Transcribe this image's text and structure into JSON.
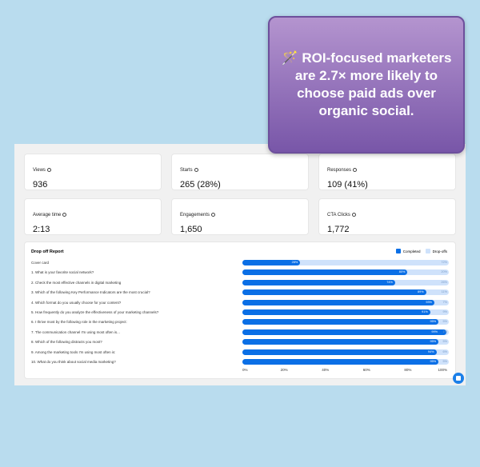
{
  "stats": [
    {
      "label": "Views",
      "value": "936"
    },
    {
      "label": "Starts",
      "value": "265 (28%)"
    },
    {
      "label": "Responses",
      "value": "109 (41%)"
    },
    {
      "label": "Average time",
      "value": "2:13"
    },
    {
      "label": "Engagements",
      "value": "1,650"
    },
    {
      "label": "CTA Clicks",
      "value": "1,772"
    }
  ],
  "report": {
    "title": "Drop off Report",
    "legend": {
      "completed": "Completed",
      "dropoffs": "Drop-offs"
    },
    "colors": {
      "completed": "#0a6fe6",
      "dropoffs": "#cfe2fb"
    },
    "axis": [
      "0%",
      "20%",
      "40%",
      "60%",
      "80%",
      "100%"
    ],
    "rows": [
      {
        "q": "Cover card",
        "completed": 28,
        "c": "28%",
        "d": "72%"
      },
      {
        "q": "1. What is your favorite social network?",
        "completed": 80,
        "c": "80%",
        "d": "20%"
      },
      {
        "q": "2. Check the most effective channels in digital marketing",
        "completed": 74,
        "c": "74%",
        "d": "26%"
      },
      {
        "q": "3. Which of the following Key Performance Indicators are the most crucial?",
        "completed": 89,
        "c": "89%",
        "d": "11%"
      },
      {
        "q": "4. Which format do you usually choose for your content?",
        "completed": 93,
        "c": "93%",
        "d": "7%"
      },
      {
        "q": "5. How frequently do you analyze the effectiveness of your marketing channels?",
        "completed": 91,
        "c": "91%",
        "d": "9%"
      },
      {
        "q": "6. I thrive most by the following role in the marketing project:",
        "completed": 95,
        "c": "95%",
        "d": "5%"
      },
      {
        "q": "7. The communication channel I'm using most often is...",
        "completed": 99,
        "c": "99%",
        "d": "1%"
      },
      {
        "q": "8. Which of the following distracts you most?",
        "completed": 95,
        "c": "95%",
        "d": "5%"
      },
      {
        "q": "9. Among the marketing tools I'm using most often is:",
        "completed": 94,
        "c": "94%",
        "d": "6%"
      },
      {
        "q": "10. What do you think about social media marketing?",
        "completed": 95,
        "c": "95%",
        "d": "5%"
      }
    ]
  },
  "callout": {
    "icon": "magic-wand-icon",
    "emoji": "🪄",
    "text": "ROI-focused marketers are 2.7× more likely to choose paid ads over organic social."
  }
}
